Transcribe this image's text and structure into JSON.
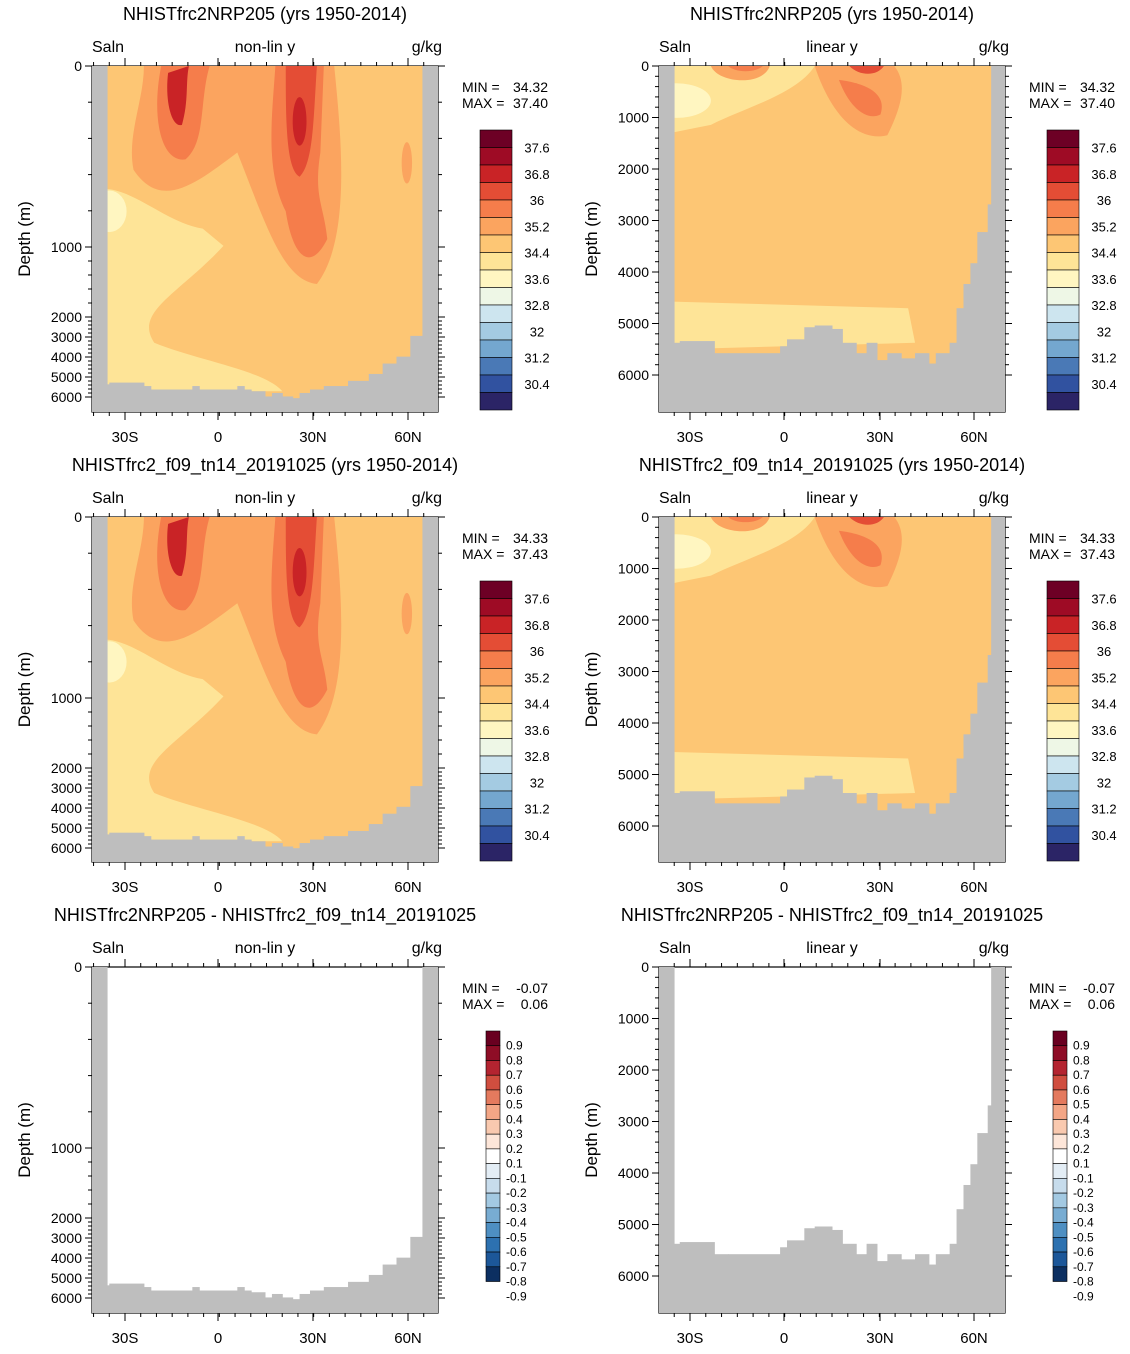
{
  "colors": {
    "land": "#bebebe",
    "axis": "#000000",
    "saln_palette": [
      "#2b2466",
      "#3152a0",
      "#4a79b6",
      "#74a7cf",
      "#a4cbe2",
      "#cde5ef",
      "#eef7e6",
      "#fff6c1",
      "#fee497",
      "#fdc674",
      "#fba45f",
      "#f57d4b",
      "#e44d35",
      "#c92326",
      "#9e0b25",
      "#6d0025"
    ],
    "diff_palette": [
      "#0c2f61",
      "#1c5799",
      "#2d71b0",
      "#4e8fc2",
      "#78acd2",
      "#a3c9e2",
      "#c7dcec",
      "#e3edf5",
      "#ffffff",
      "#fde6d9",
      "#f9c9af",
      "#f3a686",
      "#e47a5e",
      "#d04e3f",
      "#b42430",
      "#8e0d26",
      "#690020"
    ]
  },
  "charts": [
    {
      "title": "NHISTfrc2NRP205 (yrs 1950-2014)",
      "left_label": "Saln",
      "center_label": "non-lin y",
      "right_label": "g/kg",
      "ylabel": "Depth (m)",
      "y_ticks": [
        "0",
        "1000",
        "2000",
        "3000",
        "4000",
        "5000",
        "6000"
      ],
      "x_ticks": [
        "30S",
        "0",
        "30N",
        "60N"
      ],
      "min_label": "MIN =",
      "min_value": "34.32",
      "max_label": "MAX =",
      "max_value": "37.40",
      "colorbar_labels": [
        "37.6",
        "36.8",
        "36",
        "35.2",
        "34.4",
        "33.6",
        "32.8",
        "32",
        "31.2",
        "30.4"
      ]
    },
    {
      "title": "NHISTfrc2NRP205 (yrs 1950-2014)",
      "left_label": "Saln",
      "center_label": "linear y",
      "right_label": "g/kg",
      "ylabel": "Depth (m)",
      "y_ticks": [
        "0",
        "1000",
        "2000",
        "3000",
        "4000",
        "5000",
        "6000"
      ],
      "x_ticks": [
        "30S",
        "0",
        "30N",
        "60N"
      ],
      "min_label": "MIN =",
      "min_value": "34.32",
      "max_label": "MAX =",
      "max_value": "37.40",
      "colorbar_labels": [
        "37.6",
        "36.8",
        "36",
        "35.2",
        "34.4",
        "33.6",
        "32.8",
        "32",
        "31.2",
        "30.4"
      ]
    },
    {
      "title": "NHISTfrc2_f09_tn14_20191025 (yrs 1950-2014)",
      "left_label": "Saln",
      "center_label": "non-lin y",
      "right_label": "g/kg",
      "ylabel": "Depth (m)",
      "y_ticks": [
        "0",
        "1000",
        "2000",
        "3000",
        "4000",
        "5000",
        "6000"
      ],
      "x_ticks": [
        "30S",
        "0",
        "30N",
        "60N"
      ],
      "min_label": "MIN =",
      "min_value": "34.33",
      "max_label": "MAX =",
      "max_value": "37.43",
      "colorbar_labels": [
        "37.6",
        "36.8",
        "36",
        "35.2",
        "34.4",
        "33.6",
        "32.8",
        "32",
        "31.2",
        "30.4"
      ]
    },
    {
      "title": "NHISTfrc2_f09_tn14_20191025 (yrs 1950-2014)",
      "left_label": "Saln",
      "center_label": "linear y",
      "right_label": "g/kg",
      "ylabel": "Depth (m)",
      "y_ticks": [
        "0",
        "1000",
        "2000",
        "3000",
        "4000",
        "5000",
        "6000"
      ],
      "x_ticks": [
        "30S",
        "0",
        "30N",
        "60N"
      ],
      "min_label": "MIN =",
      "min_value": "34.33",
      "max_label": "MAX =",
      "max_value": "37.43",
      "colorbar_labels": [
        "37.6",
        "36.8",
        "36",
        "35.2",
        "34.4",
        "33.6",
        "32.8",
        "32",
        "31.2",
        "30.4"
      ]
    },
    {
      "title": "NHISTfrc2NRP205 - NHISTfrc2_f09_tn14_20191025",
      "left_label": "Saln",
      "center_label": "non-lin y",
      "right_label": "g/kg",
      "ylabel": "Depth (m)",
      "y_ticks": [
        "0",
        "1000",
        "2000",
        "3000",
        "4000",
        "5000",
        "6000"
      ],
      "x_ticks": [
        "30S",
        "0",
        "30N",
        "60N"
      ],
      "min_label": "MIN =",
      "min_value": "-0.07",
      "max_label": "MAX =",
      "max_value": "0.06",
      "colorbar_labels": [
        "0.9",
        "0.8",
        "0.7",
        "0.6",
        "0.5",
        "0.4",
        "0.3",
        "0.2",
        "0.1",
        "-0.1",
        "-0.2",
        "-0.3",
        "-0.4",
        "-0.5",
        "-0.6",
        "-0.7",
        "-0.8",
        "-0.9"
      ]
    },
    {
      "title": "NHISTfrc2NRP205 - NHISTfrc2_f09_tn14_20191025",
      "left_label": "Saln",
      "center_label": "linear y",
      "right_label": "g/kg",
      "ylabel": "Depth (m)",
      "y_ticks": [
        "0",
        "1000",
        "2000",
        "3000",
        "4000",
        "5000",
        "6000"
      ],
      "x_ticks": [
        "30S",
        "0",
        "30N",
        "60N"
      ],
      "min_label": "MIN =",
      "min_value": "-0.07",
      "max_label": "MAX =",
      "max_value": "0.06",
      "colorbar_labels": [
        "0.9",
        "0.8",
        "0.7",
        "0.6",
        "0.5",
        "0.4",
        "0.3",
        "0.2",
        "0.1",
        "-0.1",
        "-0.2",
        "-0.3",
        "-0.4",
        "-0.5",
        "-0.6",
        "-0.7",
        "-0.8",
        "-0.9"
      ]
    }
  ],
  "chart_data": [
    {
      "type": "heatmap",
      "title": "NHISTfrc2NRP205 (yrs 1950-2014)",
      "variable": "Saln",
      "units": "g/kg",
      "y_scale": "non-lin y",
      "ylabel": "Depth (m)",
      "x_ticks": [
        "30S",
        "0",
        "30N",
        "60N"
      ],
      "y_ticks": [
        0,
        1000,
        2000,
        3000,
        4000,
        5000,
        6000
      ],
      "min": 34.32,
      "max": 37.4,
      "levels": [
        30.4,
        31.2,
        32,
        32.8,
        33.6,
        34.4,
        35.2,
        36,
        36.8,
        37.6
      ]
    },
    {
      "type": "heatmap",
      "title": "NHISTfrc2NRP205 (yrs 1950-2014)",
      "variable": "Saln",
      "units": "g/kg",
      "y_scale": "linear y",
      "ylabel": "Depth (m)",
      "x_ticks": [
        "30S",
        "0",
        "30N",
        "60N"
      ],
      "y_ticks": [
        0,
        1000,
        2000,
        3000,
        4000,
        5000,
        6000
      ],
      "min": 34.32,
      "max": 37.4,
      "levels": [
        30.4,
        31.2,
        32,
        32.8,
        33.6,
        34.4,
        35.2,
        36,
        36.8,
        37.6
      ]
    },
    {
      "type": "heatmap",
      "title": "NHISTfrc2_f09_tn14_20191025 (yrs 1950-2014)",
      "variable": "Saln",
      "units": "g/kg",
      "y_scale": "non-lin y",
      "ylabel": "Depth (m)",
      "x_ticks": [
        "30S",
        "0",
        "30N",
        "60N"
      ],
      "y_ticks": [
        0,
        1000,
        2000,
        3000,
        4000,
        5000,
        6000
      ],
      "min": 34.33,
      "max": 37.43,
      "levels": [
        30.4,
        31.2,
        32,
        32.8,
        33.6,
        34.4,
        35.2,
        36,
        36.8,
        37.6
      ]
    },
    {
      "type": "heatmap",
      "title": "NHISTfrc2_f09_tn14_20191025 (yrs 1950-2014)",
      "variable": "Saln",
      "units": "g/kg",
      "y_scale": "linear y",
      "ylabel": "Depth (m)",
      "x_ticks": [
        "30S",
        "0",
        "30N",
        "60N"
      ],
      "y_ticks": [
        0,
        1000,
        2000,
        3000,
        4000,
        5000,
        6000
      ],
      "min": 34.33,
      "max": 37.43,
      "levels": [
        30.4,
        31.2,
        32,
        32.8,
        33.6,
        34.4,
        35.2,
        36,
        36.8,
        37.6
      ]
    },
    {
      "type": "heatmap",
      "title": "NHISTfrc2NRP205 - NHISTfrc2_f09_tn14_20191025",
      "variable": "Saln",
      "units": "g/kg",
      "y_scale": "non-lin y",
      "ylabel": "Depth (m)",
      "x_ticks": [
        "30S",
        "0",
        "30N",
        "60N"
      ],
      "y_ticks": [
        0,
        1000,
        2000,
        3000,
        4000,
        5000,
        6000
      ],
      "min": -0.07,
      "max": 0.06,
      "levels": [
        -0.9,
        -0.8,
        -0.7,
        -0.6,
        -0.5,
        -0.4,
        -0.3,
        -0.2,
        -0.1,
        0.1,
        0.2,
        0.3,
        0.4,
        0.5,
        0.6,
        0.7,
        0.8,
        0.9
      ]
    },
    {
      "type": "heatmap",
      "title": "NHISTfrc2NRP205 - NHISTfrc2_f09_tn14_20191025",
      "variable": "Saln",
      "units": "g/kg",
      "y_scale": "linear y",
      "ylabel": "Depth (m)",
      "x_ticks": [
        "30S",
        "0",
        "30N",
        "60N"
      ],
      "y_ticks": [
        0,
        1000,
        2000,
        3000,
        4000,
        5000,
        6000
      ],
      "min": -0.07,
      "max": 0.06,
      "levels": [
        -0.9,
        -0.8,
        -0.7,
        -0.6,
        -0.5,
        -0.4,
        -0.3,
        -0.2,
        -0.1,
        0.1,
        0.2,
        0.3,
        0.4,
        0.5,
        0.6,
        0.7,
        0.8,
        0.9
      ]
    }
  ]
}
